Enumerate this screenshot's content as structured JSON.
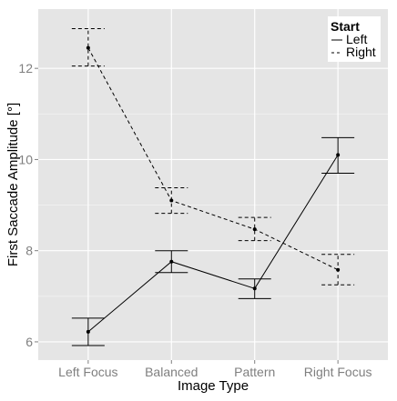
{
  "chart_data": {
    "type": "line",
    "title": "",
    "xlabel": "Image Type",
    "ylabel": "First Saccade Amplitude [°]",
    "categories": [
      "Left Focus",
      "Balanced",
      "Pattern",
      "Right Focus"
    ],
    "ylim": [
      5.6,
      13.3
    ],
    "yticks": [
      6,
      8,
      10,
      12
    ],
    "grid": true,
    "legend": {
      "title": "Start",
      "placement": "top-right",
      "entries": [
        {
          "label": "Left",
          "linestyle": "solid"
        },
        {
          "label": "Right",
          "linestyle": "dashed"
        }
      ]
    },
    "series": [
      {
        "name": "Left",
        "linestyle": "solid",
        "values": [
          6.22,
          7.76,
          7.17,
          10.1
        ],
        "err_low": [
          5.92,
          7.52,
          6.95,
          9.7
        ],
        "err_high": [
          6.52,
          8.0,
          7.38,
          10.48
        ]
      },
      {
        "name": "Right",
        "linestyle": "dashed",
        "values": [
          12.45,
          9.1,
          8.47,
          7.58
        ],
        "err_low": [
          12.05,
          8.82,
          8.22,
          7.25
        ],
        "err_high": [
          12.87,
          9.38,
          8.73,
          7.92
        ]
      }
    ],
    "colors": {
      "panel": "#e5e5e5",
      "grid_major": "#ffffff",
      "grid_minor": "#f2f2f2",
      "line": "#000000",
      "tick_text": "#7f7f7f"
    }
  }
}
